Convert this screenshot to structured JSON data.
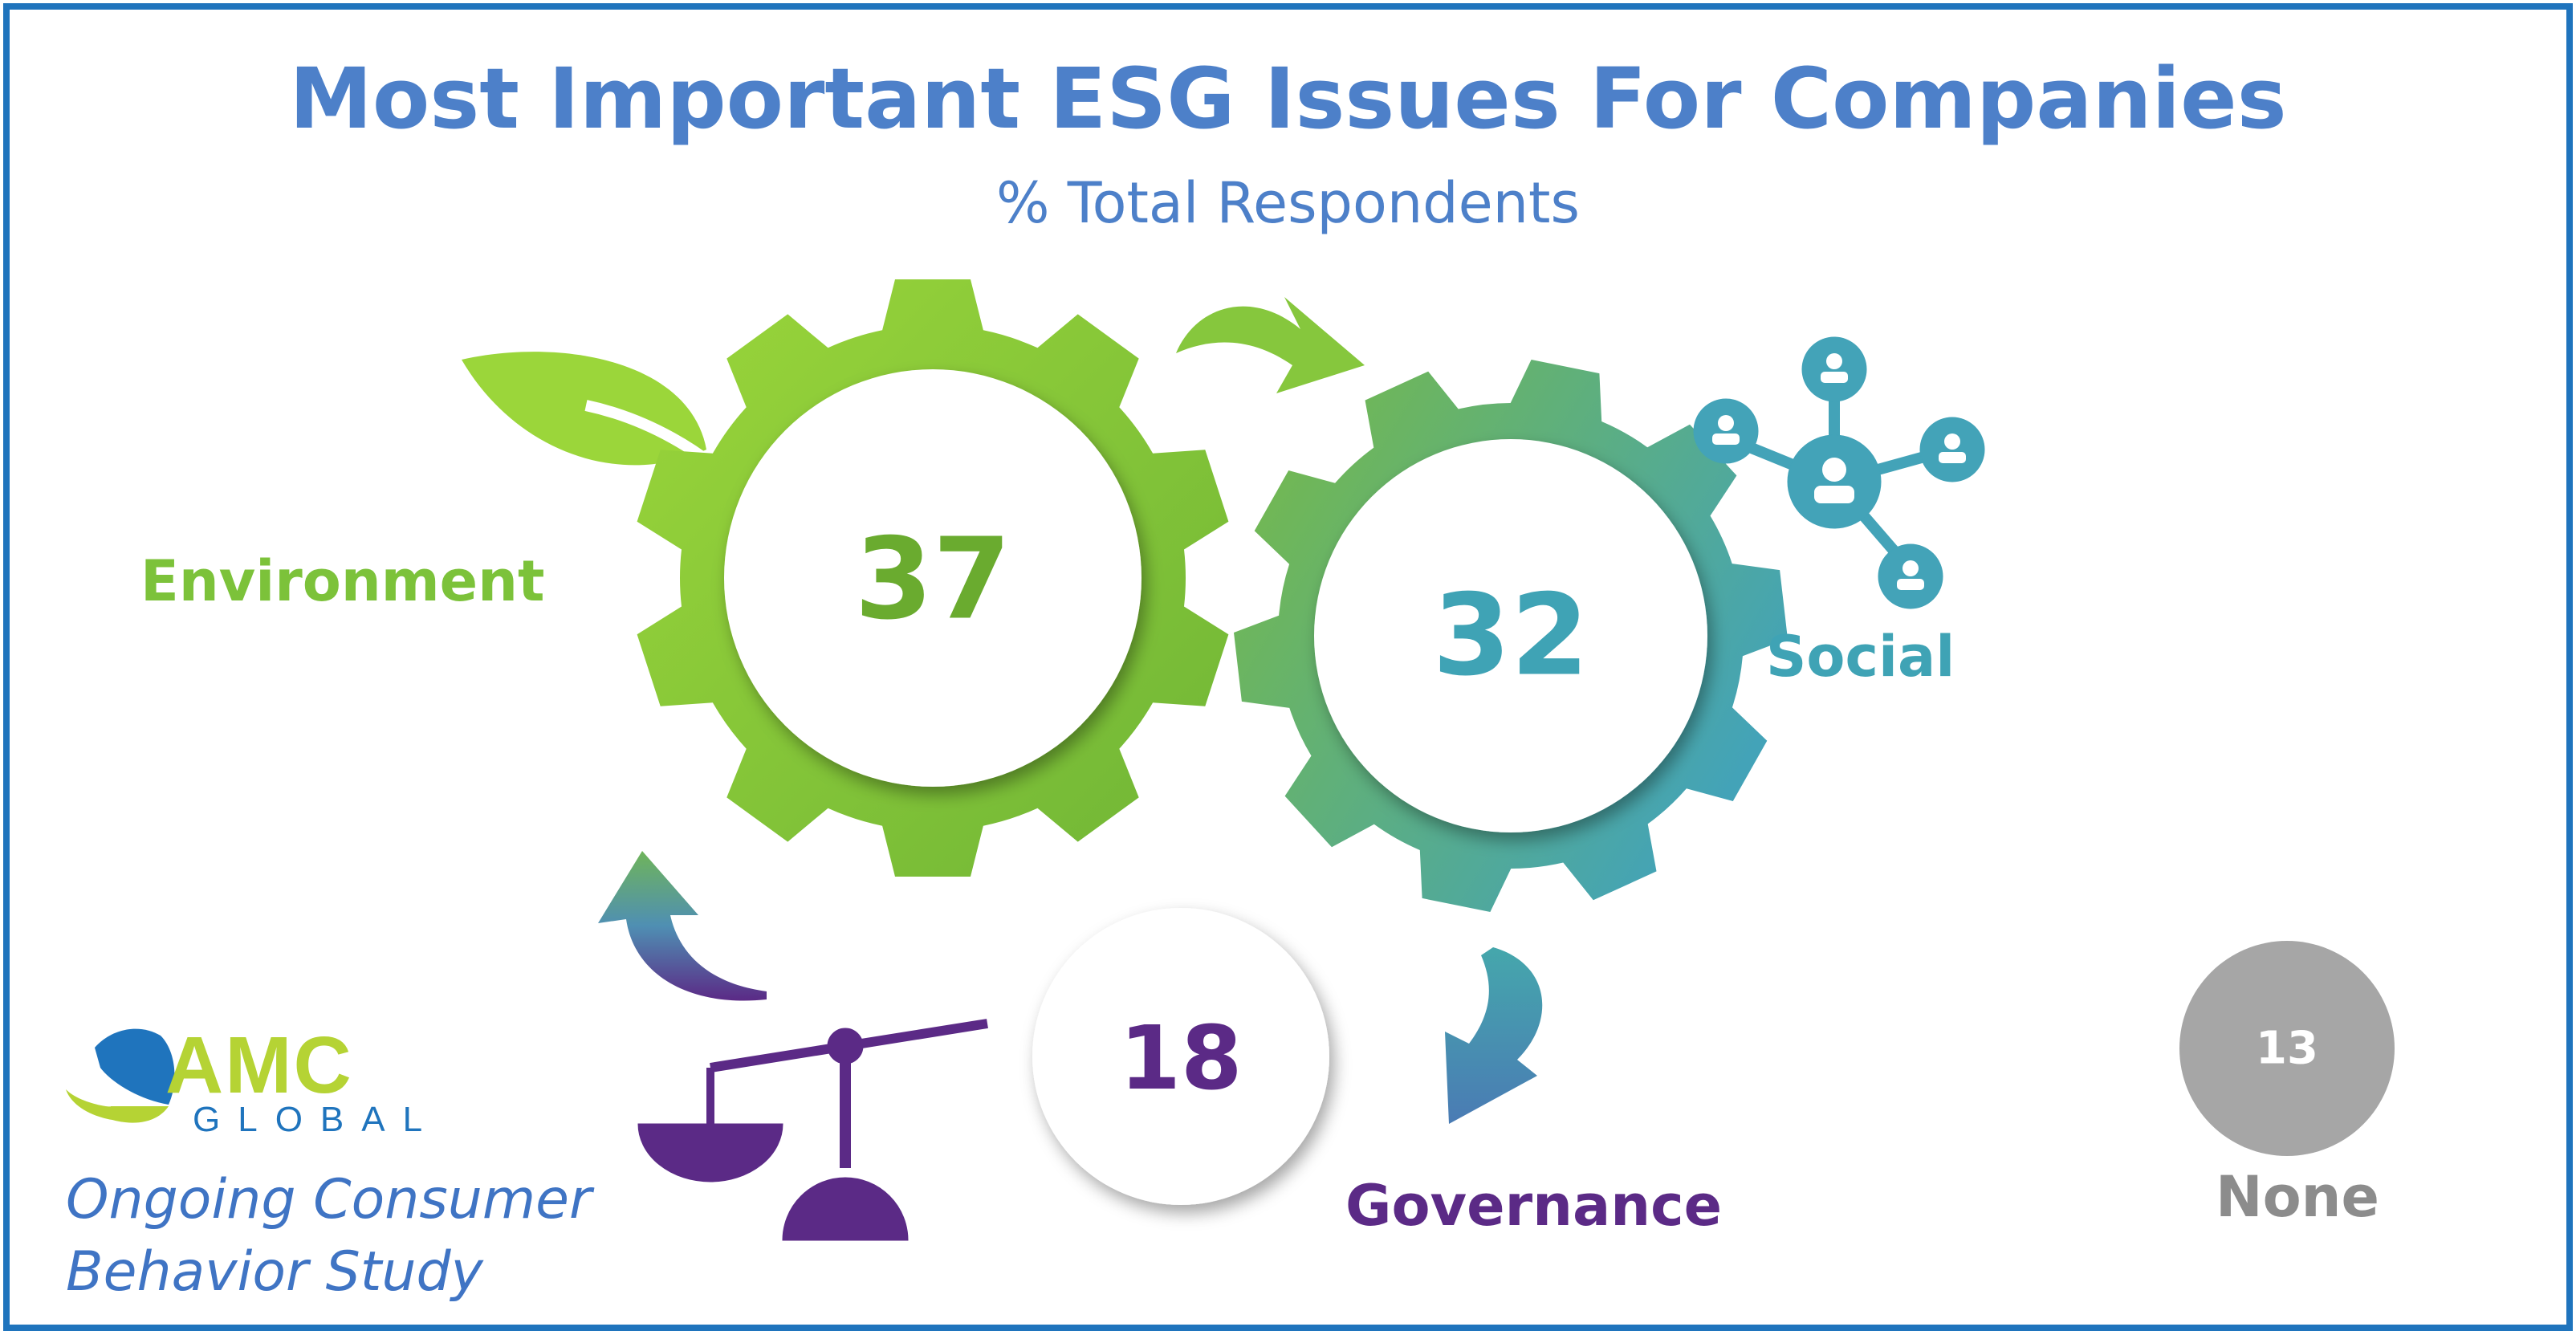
{
  "header": {
    "title": "Most Important ESG Issues For Companies",
    "subtitle": "% Total Respondents"
  },
  "issues": {
    "environment": {
      "label": "Environment",
      "value": "37",
      "color": "#7cc23a"
    },
    "social": {
      "label": "Social",
      "value": "32",
      "color": "#3fa3b5"
    },
    "governance": {
      "label": "Governance",
      "value": "18",
      "color": "#5b2a86"
    },
    "none": {
      "label": "None",
      "value": "13",
      "color": "#a6a6a6"
    }
  },
  "logo": {
    "primary": "AMC",
    "secondary": "GLOBAL"
  },
  "footer": {
    "line1": "Ongoing Consumer",
    "line2": "Behavior Study"
  },
  "colors": {
    "frame": "#1f74bd",
    "title": "#4d80c9"
  }
}
